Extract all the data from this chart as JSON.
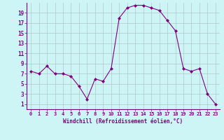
{
  "x": [
    0,
    1,
    2,
    3,
    4,
    5,
    6,
    7,
    8,
    9,
    10,
    11,
    12,
    13,
    14,
    15,
    16,
    17,
    18,
    19,
    20,
    21,
    22,
    23
  ],
  "y": [
    7.5,
    7,
    8.5,
    7,
    7,
    6.5,
    4.5,
    2,
    6,
    5.5,
    8,
    18,
    20,
    20.5,
    20.5,
    20,
    19.5,
    17.5,
    15.5,
    8,
    7.5,
    8,
    3,
    1
  ],
  "line_color": "#800080",
  "marker": "D",
  "marker_size": 2.0,
  "bg_color": "#cef5f5",
  "grid_color": "#b0c8c8",
  "xlabel": "Windchill (Refroidissement éolien,°C)",
  "tick_color": "#800080",
  "label_color": "#800080",
  "ylim": [
    0,
    21
  ],
  "xlim": [
    -0.5,
    23.5
  ],
  "yticks": [
    1,
    3,
    5,
    7,
    9,
    11,
    13,
    15,
    17,
    19
  ],
  "xticks": [
    0,
    1,
    2,
    3,
    4,
    5,
    6,
    7,
    8,
    9,
    10,
    11,
    12,
    13,
    14,
    15,
    16,
    17,
    18,
    19,
    20,
    21,
    22,
    23
  ]
}
